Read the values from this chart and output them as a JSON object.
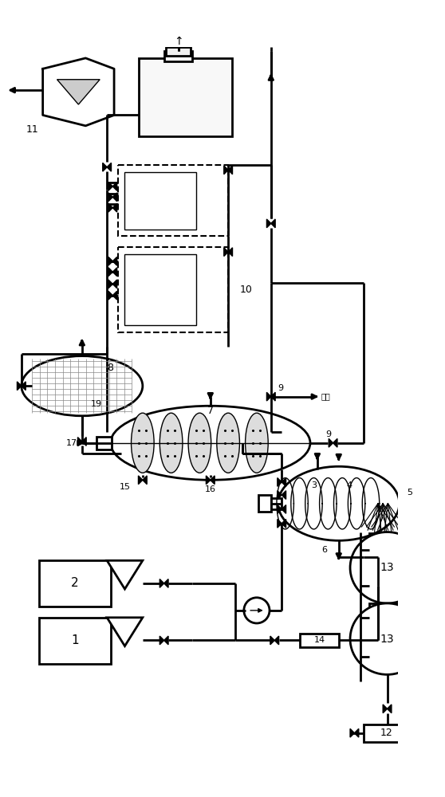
{
  "bg_color": "#ffffff",
  "line_color": "#000000",
  "lw": 2.0,
  "tlw": 1.0,
  "fs": 8
}
